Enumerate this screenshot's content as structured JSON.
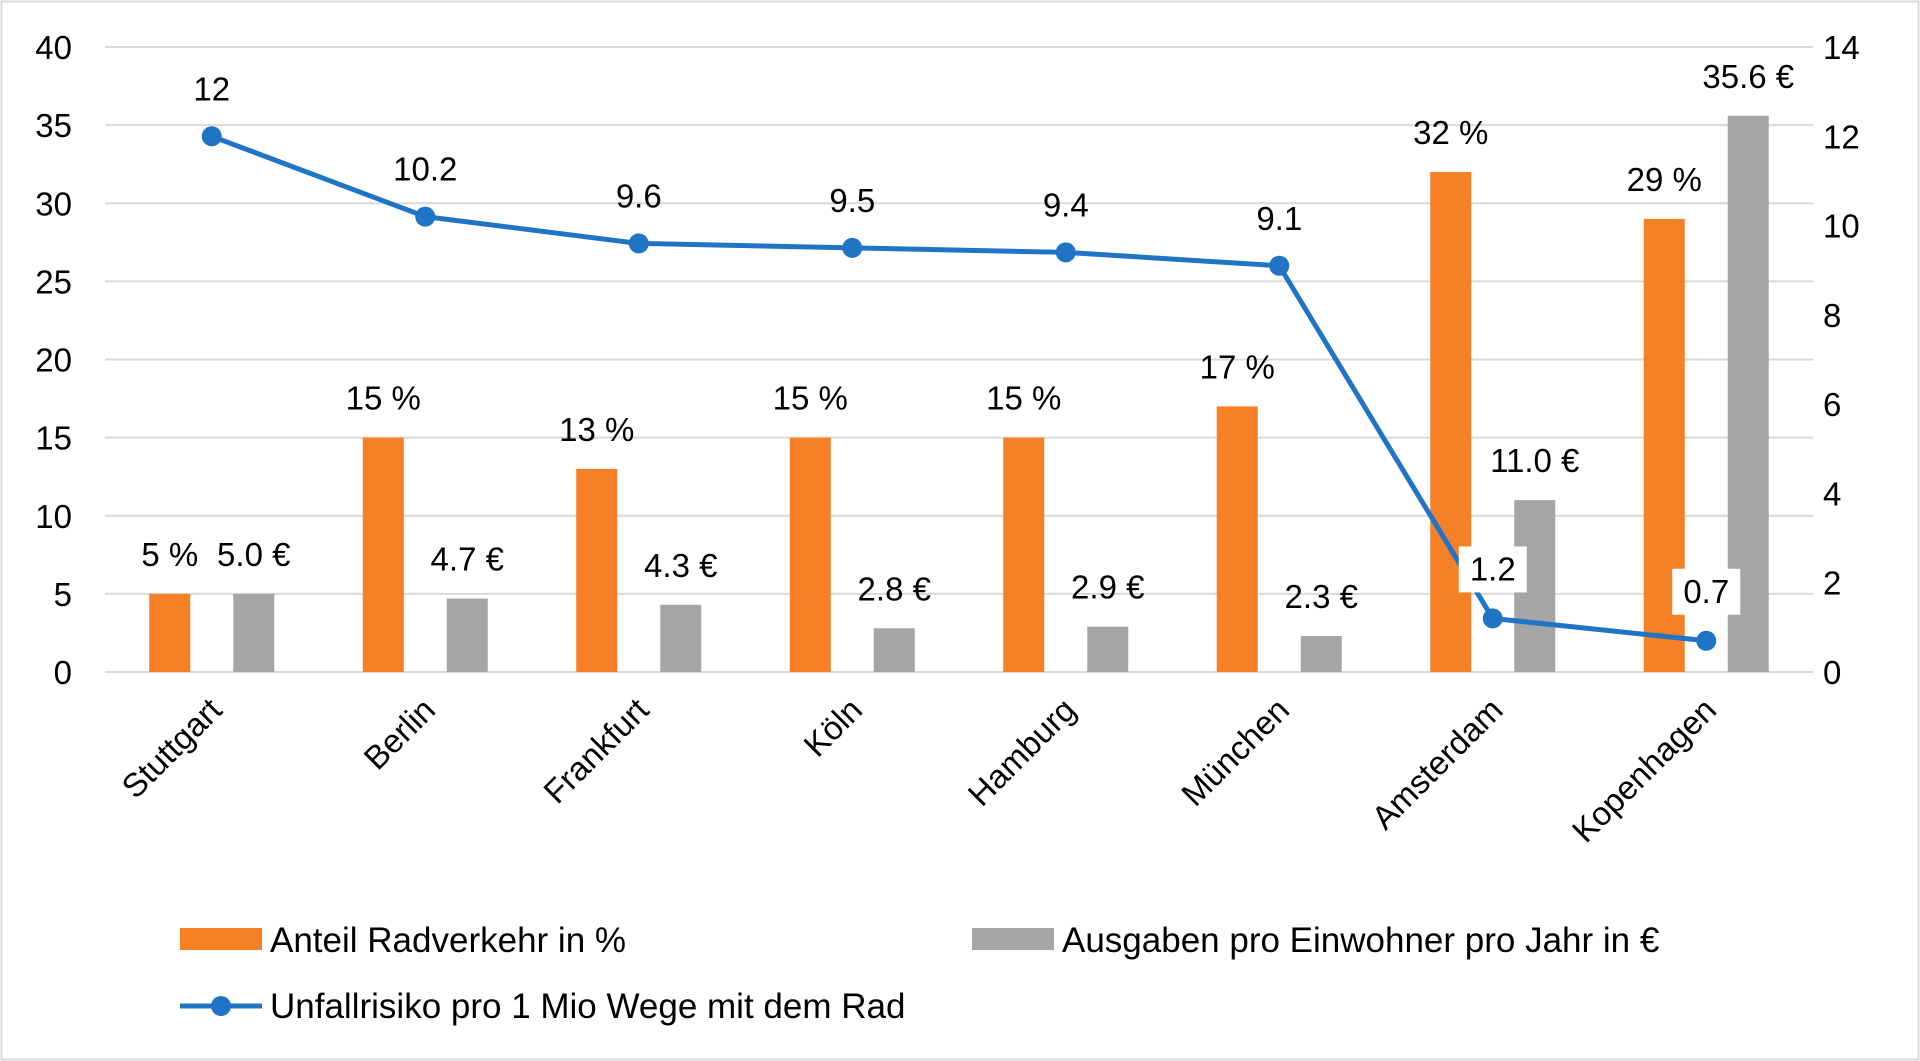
{
  "chart_data": {
    "type": "bar",
    "categories": [
      "Stuttgart",
      "Berlin",
      "Frankfurt",
      "Köln",
      "Hamburg",
      "München",
      "Amsterdam",
      "Kopenhagen"
    ],
    "series": [
      {
        "name": "Anteil Radverkehr in %",
        "kind": "bar",
        "axis": "left",
        "color": "#F58025",
        "values": [
          5,
          15,
          13,
          15,
          15,
          17,
          32,
          29
        ],
        "labels": [
          "5 %",
          "15 %",
          "13 %",
          "15 %",
          "15 %",
          "17 %",
          "32 %",
          "29 %"
        ]
      },
      {
        "name": "Ausgaben pro Einwohner pro Jahr in €",
        "kind": "bar",
        "axis": "left",
        "color": "#A5A5A5",
        "values": [
          5.0,
          4.7,
          4.3,
          2.8,
          2.9,
          2.3,
          11.0,
          35.6
        ],
        "labels": [
          "5.0 €",
          "4.7 €",
          "4.3 €",
          "2.8 €",
          "2.9 €",
          "2.3 €",
          "11.0 €",
          "35.6 €"
        ]
      },
      {
        "name": "Unfallrisiko pro 1 Mio Wege mit dem Rad",
        "kind": "line",
        "axis": "right",
        "color": "#1F74C6",
        "values": [
          12,
          10.2,
          9.6,
          9.5,
          9.4,
          9.1,
          1.2,
          0.7
        ],
        "labels": [
          "12",
          "10.2",
          "9.6",
          "9.5",
          "9.4",
          "9.1",
          "1.2",
          "0.7"
        ]
      }
    ],
    "y_left": {
      "ylim": [
        0,
        40
      ],
      "ticks": [
        "0",
        "5",
        "10",
        "15",
        "20",
        "25",
        "30",
        "35",
        "40"
      ]
    },
    "y_right": {
      "ylim": [
        0,
        14
      ],
      "ticks": [
        "0",
        "2",
        "4",
        "6",
        "8",
        "10",
        "12",
        "14"
      ]
    },
    "grid": true,
    "legend_position": "bottom",
    "title": "",
    "xlabel": "",
    "ylabel": ""
  }
}
